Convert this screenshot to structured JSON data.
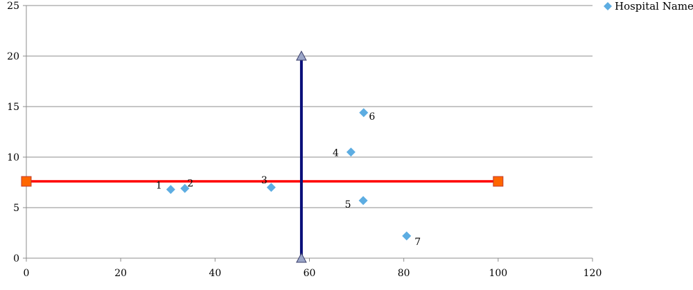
{
  "chart_data": {
    "type": "scatter",
    "title": "",
    "xlabel": "",
    "ylabel": "",
    "xlim": [
      0,
      120
    ],
    "ylim": [
      0,
      25
    ],
    "x_ticks": [
      "0",
      "20",
      "40",
      "60",
      "80",
      "100",
      "120"
    ],
    "y_ticks": [
      "0",
      "5",
      "10",
      "15",
      "20",
      "25"
    ],
    "grid": "horizontal",
    "legend_position": "top-right",
    "series": [
      {
        "name": "Hospital Name",
        "color": "#5DADE2",
        "marker": "diamond",
        "points": [
          {
            "label": "1",
            "x": 30.6,
            "y": 6.8
          },
          {
            "label": "2",
            "x": 33.6,
            "y": 6.9
          },
          {
            "label": "3",
            "x": 51.9,
            "y": 7.0
          },
          {
            "label": "4",
            "x": 68.8,
            "y": 10.5
          },
          {
            "label": "5",
            "x": 71.4,
            "y": 5.7
          },
          {
            "label": "6",
            "x": 71.5,
            "y": 14.4
          },
          {
            "label": "7",
            "x": 80.6,
            "y": 2.2
          }
        ]
      }
    ],
    "reference_lines": [
      {
        "orientation": "horizontal",
        "color": "#FF0000",
        "marker": "square",
        "marker_color": "#FF6600",
        "from": [
          0,
          7.6
        ],
        "to": [
          100,
          7.6
        ]
      },
      {
        "orientation": "vertical",
        "color": "#0A0F7A",
        "marker": "triangle",
        "marker_color": "#9BA6C8",
        "from": [
          58.3,
          0
        ],
        "to": [
          58.3,
          20
        ]
      }
    ]
  }
}
